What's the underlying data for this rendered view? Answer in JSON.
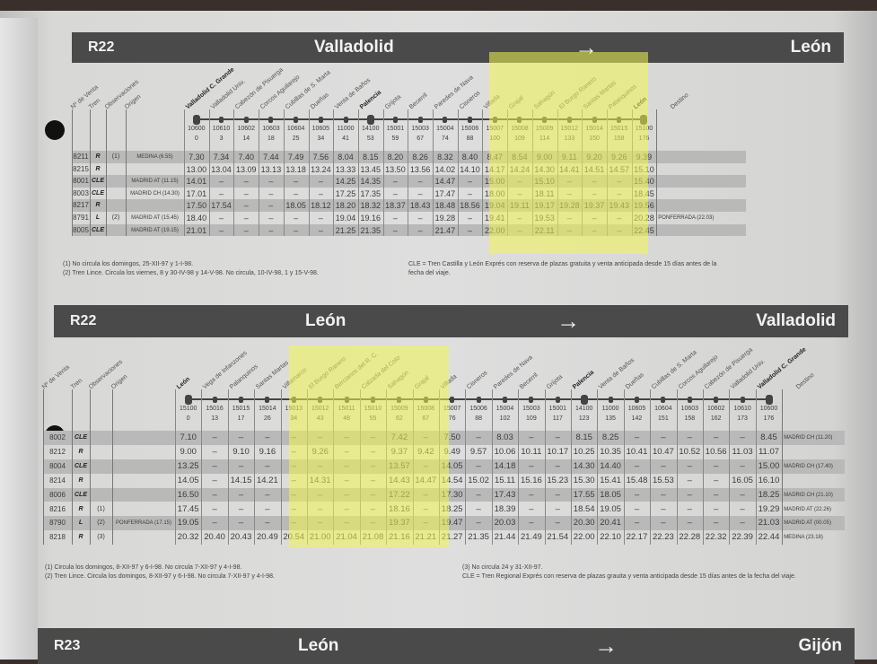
{
  "colors": {
    "header_bar": "#4a4a4a",
    "highlight": "#f0f550",
    "row_shade": "#b9b9b9"
  },
  "icons": {
    "direction": "arrow-right-icon"
  },
  "headers": {
    "num": "Nº de Venta",
    "tren": "Tren",
    "obs": "Observaciones",
    "origen": "Origen",
    "destino": "Destino"
  },
  "tables": [
    {
      "code": "R22",
      "from": "Valladolid",
      "arrow": "→",
      "to": "León",
      "stations": [
        {
          "name": "Valladolid C. Grande",
          "code": "10600",
          "km": "0",
          "major": true
        },
        {
          "name": "Valladolid Univ.",
          "code": "10610",
          "km": "3"
        },
        {
          "name": "Cabezón de Pisuerga",
          "code": "10602",
          "km": "14"
        },
        {
          "name": "Corcos Aguilarejo",
          "code": "10603",
          "km": "18"
        },
        {
          "name": "Cubillas de S. Marta",
          "code": "10604",
          "km": "25"
        },
        {
          "name": "Dueñas",
          "code": "10605",
          "km": "34"
        },
        {
          "name": "Venta de Baños",
          "code": "11000",
          "km": "41"
        },
        {
          "name": "Palencia",
          "code": "14100",
          "km": "53",
          "major": true
        },
        {
          "name": "Grijota",
          "code": "15001",
          "km": "59"
        },
        {
          "name": "Becerril",
          "code": "15003",
          "km": "67"
        },
        {
          "name": "Paredes de Nava",
          "code": "15004",
          "km": "74"
        },
        {
          "name": "Cisneros",
          "code": "15006",
          "km": "88"
        },
        {
          "name": "Villada",
          "code": "15007",
          "km": "100"
        },
        {
          "name": "Grajal",
          "code": "15008",
          "km": "109"
        },
        {
          "name": "Sahagún",
          "code": "15009",
          "km": "114"
        },
        {
          "name": "El Burgo Ranero",
          "code": "15012",
          "km": "133"
        },
        {
          "name": "Santas Martas",
          "code": "15014",
          "km": "150"
        },
        {
          "name": "Palanquinos",
          "code": "15015",
          "km": "158"
        },
        {
          "name": "León",
          "code": "15100",
          "km": "176",
          "major": true
        }
      ],
      "rows": [
        {
          "num": "8211",
          "tren": "R",
          "obs": "(1)",
          "origen": "MEDINA (6.55)",
          "times": [
            "7.30",
            "7.34",
            "7.40",
            "7.44",
            "7.49",
            "7.56",
            "8.04",
            "8.15",
            "8.20",
            "8.26",
            "8.32",
            "8.40",
            "8.47",
            "8.54",
            "9.00",
            "9.11",
            "9.20",
            "9.26",
            "9.39"
          ],
          "destino": ""
        },
        {
          "num": "8215",
          "tren": "R",
          "obs": "",
          "origen": "",
          "times": [
            "13.00",
            "13.04",
            "13.09",
            "13.13",
            "13.18",
            "13.24",
            "13.33",
            "13.45",
            "13.50",
            "13.56",
            "14.02",
            "14.10",
            "14.17",
            "14.24",
            "14.30",
            "14.41",
            "14.51",
            "14.57",
            "15.10"
          ],
          "destino": ""
        },
        {
          "num": "8001",
          "tren": "CLE",
          "obs": "",
          "origen": "MADRID AT (11.15)",
          "times": [
            "14.01",
            "–",
            "–",
            "–",
            "–",
            "–",
            "14.25",
            "14.35",
            "–",
            "–",
            "14.47",
            "–",
            "15.00",
            "–",
            "15.10",
            "–",
            "–",
            "–",
            "15.40"
          ],
          "destino": ""
        },
        {
          "num": "8003",
          "tren": "CLE",
          "obs": "",
          "origen": "MADRID CH (14.30)",
          "times": [
            "17.01",
            "–",
            "–",
            "–",
            "–",
            "–",
            "17.25",
            "17.35",
            "–",
            "–",
            "17.47",
            "–",
            "18.00",
            "–",
            "18.11",
            "–",
            "–",
            "–",
            "18.45"
          ],
          "destino": ""
        },
        {
          "num": "8217",
          "tren": "R",
          "obs": "",
          "origen": "",
          "times": [
            "17.50",
            "17.54",
            "–",
            "–",
            "18.05",
            "18.12",
            "18.20",
            "18.32",
            "18.37",
            "18.43",
            "18.48",
            "18.56",
            "19.04",
            "19.11",
            "19.17",
            "19.28",
            "19.37",
            "19.43",
            "19.56"
          ],
          "destino": ""
        },
        {
          "num": "8791",
          "tren": "L",
          "obs": "(2)",
          "origen": "MADRID AT (15.45)",
          "times": [
            "18.40",
            "–",
            "–",
            "–",
            "–",
            "–",
            "19.04",
            "19.16",
            "–",
            "–",
            "19.28",
            "–",
            "19.41",
            "–",
            "19.53",
            "–",
            "–",
            "–",
            "20.28"
          ],
          "destino": "PONFERRADA (22.03)"
        },
        {
          "num": "8005",
          "tren": "CLE",
          "obs": "",
          "origen": "MADRID AT (19.15)",
          "times": [
            "21.01",
            "–",
            "–",
            "–",
            "–",
            "–",
            "21.25",
            "21.35",
            "–",
            "–",
            "21.47",
            "–",
            "22.00",
            "–",
            "22.11",
            "–",
            "–",
            "–",
            "22.45"
          ],
          "destino": ""
        }
      ],
      "footnotes_left": [
        "(1) No circula los domingos, 25-XII-97 y 1-I-98.",
        "(2) Tren Lince. Circula los viernes, 8 y 30-IV-98 y 14-V-98. No circula, 10-IV-98, 1 y 15-V-98."
      ],
      "footnotes_right": [
        "CLE = Tren Castilla y León Exprés con reserva de plazas gratuita y venta anticipada desde 15 días antes de la fecha del viaje."
      ]
    },
    {
      "code": "R22",
      "from": "León",
      "arrow": "→",
      "to": "Valladolid",
      "stations": [
        {
          "name": "León",
          "code": "15100",
          "km": "0",
          "major": true
        },
        {
          "name": "Vega de Infanzones",
          "code": "15016",
          "km": "13"
        },
        {
          "name": "Palanquinos",
          "code": "15015",
          "km": "17"
        },
        {
          "name": "Santas Martas",
          "code": "15014",
          "km": "26"
        },
        {
          "name": "Villamarco",
          "code": "15013",
          "km": "34"
        },
        {
          "name": "El Burgo Ranero",
          "code": "15012",
          "km": "43"
        },
        {
          "name": "Bercianos del R. C.",
          "code": "15011",
          "km": "48"
        },
        {
          "name": "Calzada del Coto",
          "code": "15010",
          "km": "55"
        },
        {
          "name": "Sahagún",
          "code": "15009",
          "km": "62"
        },
        {
          "name": "Grajal",
          "code": "15008",
          "km": "67"
        },
        {
          "name": "Villada",
          "code": "15007",
          "km": "76"
        },
        {
          "name": "Cisneros",
          "code": "15006",
          "km": "88"
        },
        {
          "name": "Paredes de Nava",
          "code": "15004",
          "km": "102"
        },
        {
          "name": "Becerril",
          "code": "15003",
          "km": "109"
        },
        {
          "name": "Grijota",
          "code": "15001",
          "km": "117"
        },
        {
          "name": "Palencia",
          "code": "14100",
          "km": "123",
          "major": true
        },
        {
          "name": "Venta de Baños",
          "code": "11000",
          "km": "135"
        },
        {
          "name": "Dueñas",
          "code": "10605",
          "km": "142"
        },
        {
          "name": "Cubillas de S. Marta",
          "code": "10604",
          "km": "151"
        },
        {
          "name": "Corcos Aguilarejo",
          "code": "10603",
          "km": "158"
        },
        {
          "name": "Cabezón de Pisuerga",
          "code": "10602",
          "km": "162"
        },
        {
          "name": "Valladolid Univ.",
          "code": "10610",
          "km": "173"
        },
        {
          "name": "Valladolid C. Grande",
          "code": "10600",
          "km": "176",
          "major": true
        }
      ],
      "rows": [
        {
          "num": "8002",
          "tren": "CLE",
          "obs": "",
          "origen": "",
          "times": [
            "7.10",
            "–",
            "–",
            "–",
            "–",
            "–",
            "–",
            "–",
            "7.42",
            "–",
            "7.50",
            "–",
            "8.03",
            "–",
            "–",
            "8.15",
            "8.25",
            "–",
            "–",
            "–",
            "–",
            "–",
            "8.45"
          ],
          "destino": "MADRID CH (11.20)"
        },
        {
          "num": "8212",
          "tren": "R",
          "obs": "",
          "origen": "",
          "times": [
            "9.00",
            "–",
            "9.10",
            "9.16",
            "–",
            "9.26",
            "–",
            "–",
            "9.37",
            "9.42",
            "9.49",
            "9.57",
            "10.06",
            "10.11",
            "10.17",
            "10.25",
            "10.35",
            "10.41",
            "10.47",
            "10.52",
            "10.56",
            "11.03",
            "11.07"
          ],
          "destino": ""
        },
        {
          "num": "8004",
          "tren": "CLE",
          "obs": "",
          "origen": "",
          "times": [
            "13.25",
            "–",
            "–",
            "–",
            "–",
            "–",
            "–",
            "–",
            "13.57",
            "–",
            "14.05",
            "–",
            "14.18",
            "–",
            "–",
            "14.30",
            "14.40",
            "–",
            "–",
            "–",
            "–",
            "–",
            "15.00"
          ],
          "destino": "MADRID CH (17.40)"
        },
        {
          "num": "8214",
          "tren": "R",
          "obs": "",
          "origen": "",
          "times": [
            "14.05",
            "–",
            "14.15",
            "14.21",
            "–",
            "14.31",
            "–",
            "–",
            "14.43",
            "14.47",
            "14.54",
            "15.02",
            "15.11",
            "15.16",
            "15.23",
            "15.30",
            "15.41",
            "15.48",
            "15.53",
            "–",
            "–",
            "16.05",
            "16.10"
          ],
          "destino": ""
        },
        {
          "num": "8006",
          "tren": "CLE",
          "obs": "",
          "origen": "",
          "times": [
            "16.50",
            "–",
            "–",
            "–",
            "–",
            "–",
            "–",
            "–",
            "17.22",
            "–",
            "17.30",
            "–",
            "17.43",
            "–",
            "–",
            "17.55",
            "18.05",
            "–",
            "–",
            "–",
            "–",
            "–",
            "18.25"
          ],
          "destino": "MADRID CH (21.10)"
        },
        {
          "num": "8216",
          "tren": "R",
          "obs": "(1)",
          "origen": "",
          "times": [
            "17.45",
            "–",
            "–",
            "–",
            "–",
            "–",
            "–",
            "–",
            "18.16",
            "–",
            "18.25",
            "–",
            "18.39",
            "–",
            "–",
            "18.54",
            "19.05",
            "–",
            "–",
            "–",
            "–",
            "–",
            "19.29"
          ],
          "destino": "MADRID AT (22.26)"
        },
        {
          "num": "8790",
          "tren": "L",
          "obs": "(2)",
          "origen": "PONFERRADA (17.15)",
          "times": [
            "19.05",
            "–",
            "–",
            "–",
            "–",
            "–",
            "–",
            "–",
            "19.37",
            "–",
            "19.47",
            "–",
            "20.03",
            "–",
            "–",
            "20.30",
            "20.41",
            "–",
            "–",
            "–",
            "–",
            "–",
            "21.03"
          ],
          "destino": "MADRID AT (00.05)"
        },
        {
          "num": "8218",
          "tren": "R",
          "obs": "(3)",
          "origen": "",
          "times": [
            "20.32",
            "20.40",
            "20.43",
            "20.49",
            "20.54",
            "21.00",
            "21.04",
            "21.08",
            "21.16",
            "21.21",
            "21.27",
            "21.35",
            "21.44",
            "21.49",
            "21.54",
            "22.00",
            "22.10",
            "22.17",
            "22.23",
            "22.28",
            "22.32",
            "22.39",
            "22.44"
          ],
          "destino": "MEDINA (23.18)"
        }
      ],
      "footnotes_left": [
        "(1) Circula los domingos, 8-XII-97 y 6-I-98. No circula 7-XII-97 y 4-I-98.",
        "(2) Tren Lince. Circula los domingos, 8-XII-97 y 6-I-98. No circula 7-XII-97 y 4-I-98."
      ],
      "footnotes_right": [
        "(3) No circula 24 y 31-XII-97.",
        "CLE = Tren Regional Exprés con reserva de plazas grauita y venta anticipada desde 15 días antes de la fecha del viaje."
      ]
    }
  ],
  "next": {
    "code": "R23",
    "from": "León",
    "arrow": "→",
    "to": "Gijón"
  }
}
